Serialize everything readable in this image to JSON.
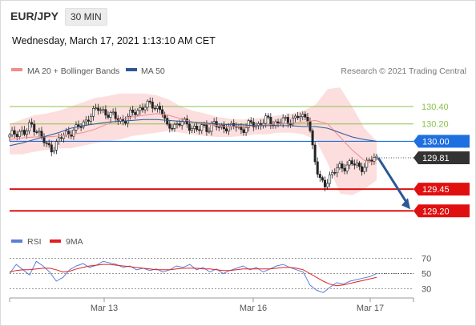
{
  "header": {
    "symbol": "EUR/JPY",
    "interval": "30 MIN",
    "datetime": "Wednesday, March 17, 2021 1:13:10 AM CET"
  },
  "legend": {
    "items": [
      {
        "label": "MA 20 + Bollinger Bands",
        "color": "#f08c8c"
      },
      {
        "label": "MA 50",
        "color": "#2b5797"
      }
    ],
    "credit": "Research © 2021 Trading Central"
  },
  "rsi_legend": {
    "items": [
      {
        "label": "RSI",
        "color": "#5b7fd6"
      },
      {
        "label": "9MA",
        "color": "#e02020"
      }
    ]
  },
  "chart_data": [
    {
      "type": "line",
      "title": "EUR/JPY 30 MIN price",
      "x_ticks": [
        "Mar 13",
        "Mar 16",
        "Mar 17"
      ],
      "ylim": [
        129.0,
        130.75
      ],
      "levels": [
        {
          "value": 130.4,
          "label": "130.40",
          "kind": "resistance",
          "color": "#8dc14a"
        },
        {
          "value": 130.2,
          "label": "130.20",
          "kind": "resistance",
          "color": "#8dc14a"
        },
        {
          "value": 130.0,
          "label": "130.00",
          "kind": "pivot",
          "color": "#1e6fe0"
        },
        {
          "value": 129.81,
          "label": "129.81",
          "kind": "last price",
          "color": "#333333"
        },
        {
          "value": 129.45,
          "label": "129.45",
          "kind": "support",
          "color": "#e01010"
        },
        {
          "value": 129.2,
          "label": "129.20",
          "kind": "support",
          "color": "#e01010"
        }
      ],
      "price_path": [
        130.05,
        130.1,
        130.12,
        130.08,
        130.2,
        130.15,
        130.05,
        129.95,
        129.92,
        129.98,
        130.05,
        130.1,
        130.12,
        130.15,
        130.2,
        130.28,
        130.33,
        130.38,
        130.35,
        130.3,
        130.28,
        130.25,
        130.24,
        130.3,
        130.35,
        130.38,
        130.4,
        130.43,
        130.4,
        130.35,
        130.15,
        130.2,
        130.18,
        130.22,
        130.2,
        130.15,
        130.12,
        130.18,
        130.15,
        130.2,
        130.15,
        130.18,
        130.15,
        130.18,
        130.14,
        130.16,
        130.2,
        130.18,
        130.22,
        130.25,
        130.2,
        130.22,
        130.25,
        130.2,
        130.27,
        130.3,
        130.25,
        130.28,
        129.85,
        129.55,
        129.5,
        129.6,
        129.65,
        129.7,
        129.72,
        129.75,
        129.72,
        129.7,
        129.74,
        129.78,
        129.81
      ],
      "ma20_bollinger": {
        "mid": [
          130.02,
          130.04,
          130.05,
          130.05,
          130.06,
          130.08,
          130.1,
          130.14,
          130.2,
          130.25,
          130.28,
          130.3,
          130.32,
          130.3,
          130.26,
          130.22,
          130.2,
          130.18,
          130.17,
          130.17,
          130.18,
          130.19,
          130.2,
          130.21,
          130.22,
          130.24,
          130.2,
          130.05,
          129.9,
          129.78,
          129.75
        ],
        "upper": [
          130.2,
          130.25,
          130.3,
          130.32,
          130.35,
          130.4,
          130.45,
          130.5,
          130.52,
          130.55,
          130.55,
          130.55,
          130.53,
          130.48,
          130.4,
          130.35,
          130.32,
          130.28,
          130.26,
          130.25,
          130.26,
          130.28,
          130.3,
          130.32,
          130.35,
          130.42,
          130.6,
          130.62,
          130.4,
          130.15,
          130.0
        ],
        "lower": [
          129.85,
          129.85,
          129.88,
          129.9,
          129.92,
          129.92,
          129.95,
          129.98,
          130.0,
          130.02,
          130.06,
          130.08,
          130.1,
          130.12,
          130.1,
          130.08,
          130.06,
          130.05,
          130.05,
          130.06,
          130.08,
          130.08,
          130.1,
          130.1,
          130.08,
          130.02,
          129.75,
          129.4,
          129.38,
          129.45,
          129.55
        ]
      },
      "ma50": [
        129.95,
        129.98,
        130.02,
        130.06,
        130.1,
        130.15,
        130.18,
        130.2,
        130.22,
        130.23,
        130.24,
        130.25,
        130.25,
        130.24,
        130.23,
        130.22,
        130.21,
        130.2,
        130.19,
        130.19,
        130.18,
        130.18,
        130.18,
        130.18,
        130.17,
        130.17,
        130.15,
        130.1,
        130.05,
        130.02,
        130.0
      ],
      "projection": {
        "from": 129.81,
        "to": 129.2,
        "direction": "down"
      }
    },
    {
      "type": "line",
      "title": "RSI",
      "ylim": [
        20,
        80
      ],
      "levels": [
        70,
        50,
        30
      ],
      "series": [
        {
          "name": "RSI",
          "values": [
            50,
            62,
            55,
            48,
            66,
            60,
            52,
            40,
            45,
            55,
            60,
            63,
            58,
            61,
            66,
            64,
            62,
            58,
            60,
            55,
            57,
            54,
            56,
            52,
            55,
            60,
            58,
            62,
            55,
            58,
            52,
            56,
            50,
            54,
            57,
            60,
            55,
            58,
            52,
            56,
            60,
            62,
            58,
            55,
            52,
            35,
            28,
            25,
            32,
            38,
            36,
            40,
            42,
            44,
            46,
            50
          ]
        },
        {
          "name": "9MA",
          "values": [
            52,
            54,
            55,
            55,
            56,
            57,
            57,
            55,
            52,
            53,
            56,
            58,
            60,
            61,
            62,
            62,
            61,
            60,
            59,
            58,
            57,
            56,
            55,
            55,
            55,
            56,
            57,
            57,
            57,
            56,
            56,
            55,
            54,
            54,
            55,
            56,
            56,
            56,
            56,
            56,
            57,
            58,
            58,
            57,
            55,
            50,
            45,
            40,
            36,
            34,
            35,
            37,
            39,
            41,
            43,
            45
          ]
        }
      ]
    }
  ]
}
